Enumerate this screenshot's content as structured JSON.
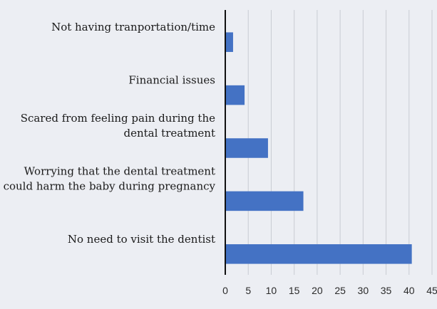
{
  "chart_data": {
    "type": "bar",
    "orientation": "horizontal",
    "title": "",
    "xlabel": "",
    "ylabel": "",
    "xlim": [
      0,
      45
    ],
    "ticks": [
      0,
      5,
      10,
      15,
      20,
      25,
      30,
      35,
      40,
      45
    ],
    "grid": true,
    "legend": "none",
    "bar_color": "#4472c4",
    "categories": [
      [
        "Not having tranportation/time"
      ],
      [
        "Financial issues"
      ],
      [
        "Scared from feeling pain during the",
        "dental treatment"
      ],
      [
        "Worrying that the dental treatment",
        "could harm the baby during pregnancy"
      ],
      [
        "No need to visit the dentist"
      ]
    ],
    "values": [
      1.7,
      4.2,
      9.3,
      17,
      40.6
    ]
  }
}
